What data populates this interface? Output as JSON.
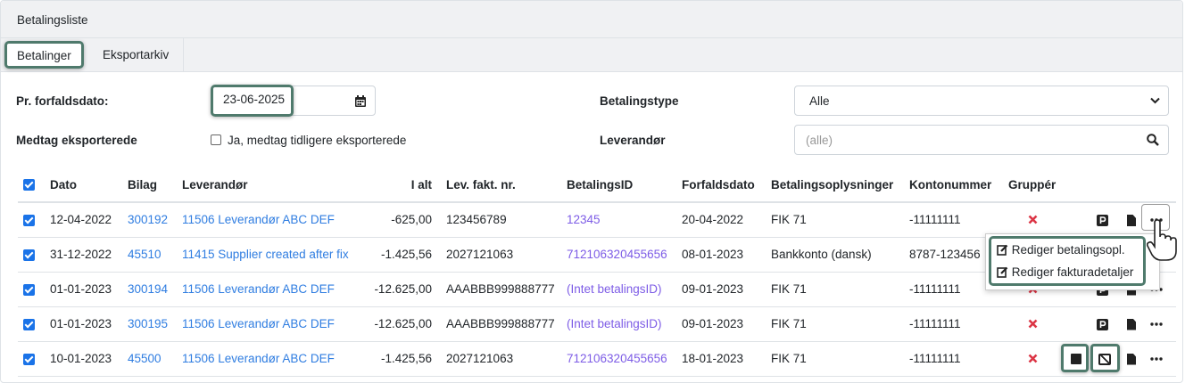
{
  "header": {
    "title": "Betalingsliste"
  },
  "tabs": [
    {
      "label": "Betalinger",
      "active": true
    },
    {
      "label": "Eksportarkiv"
    }
  ],
  "filters": {
    "due_date_label": "Pr. forfaldsdato:",
    "due_date_value": "23-06-2025",
    "include_exported_label": "Medtag eksporterede",
    "include_exported_checkbox": "Ja, medtag tidligere eksporterede",
    "payment_type_label": "Betalingstype",
    "payment_type_value": "Alle",
    "supplier_label": "Leverandør",
    "supplier_placeholder": "(alle)"
  },
  "table": {
    "columns": [
      "Dato",
      "Bilag",
      "Leverandør",
      "I alt",
      "Lev. fakt. nr.",
      "BetalingsID",
      "Forfaldsdato",
      "Betalingsoplysninger",
      "Kontonummer",
      "Gruppér"
    ],
    "rows": [
      {
        "dato": "12-04-2022",
        "bilag": "300192",
        "leverandor": "11506 Leverandør ABC DEF",
        "ialt": "-625,00",
        "levfakt": "123456789",
        "betalingsid": "12345",
        "forfald": "20-04-2022",
        "betopl": "FIK 71",
        "konto": "-11111111"
      },
      {
        "dato": "31-12-2022",
        "bilag": "45510",
        "leverandor": "11415 Supplier created after fix",
        "ialt": "-1.425,56",
        "levfakt": "2027121063",
        "betalingsid": "712106320455656",
        "forfald": "08-01-2023",
        "betopl": "Bankkonto (dansk)",
        "konto": "8787-123456"
      },
      {
        "dato": "01-01-2023",
        "bilag": "300194",
        "leverandor": "11506 Leverandør ABC DEF",
        "ialt": "-12.625,00",
        "levfakt": "AAABBB999888777",
        "betalingsid": "(Intet betalingsID)",
        "forfald": "09-01-2023",
        "betopl": "FIK 71",
        "konto": "-11111111"
      },
      {
        "dato": "01-01-2023",
        "bilag": "300195",
        "leverandor": "11506 Leverandør ABC DEF",
        "ialt": "-12.625,00",
        "levfakt": "AAABBB999888777",
        "betalingsid": "(Intet betalingsID)",
        "forfald": "09-01-2023",
        "betopl": "FIK 71",
        "konto": "-11111111"
      },
      {
        "dato": "10-01-2023",
        "bilag": "45500",
        "leverandor": "11506 Leverandør ABC DEF",
        "ialt": "-1.425,56",
        "levfakt": "2027121063",
        "betalingsid": "712106320455656",
        "forfald": "18-01-2023",
        "betopl": "FIK 71",
        "konto": "-11111111"
      }
    ]
  },
  "context_menu": {
    "items": [
      "Rediger betalingsopl.",
      "Rediger fakturadetaljer"
    ]
  },
  "colors": {
    "link": "#2f7de1",
    "payment_id": "#7d5ce6",
    "highlight": "#4f7a6c",
    "error": "#dc3545"
  }
}
